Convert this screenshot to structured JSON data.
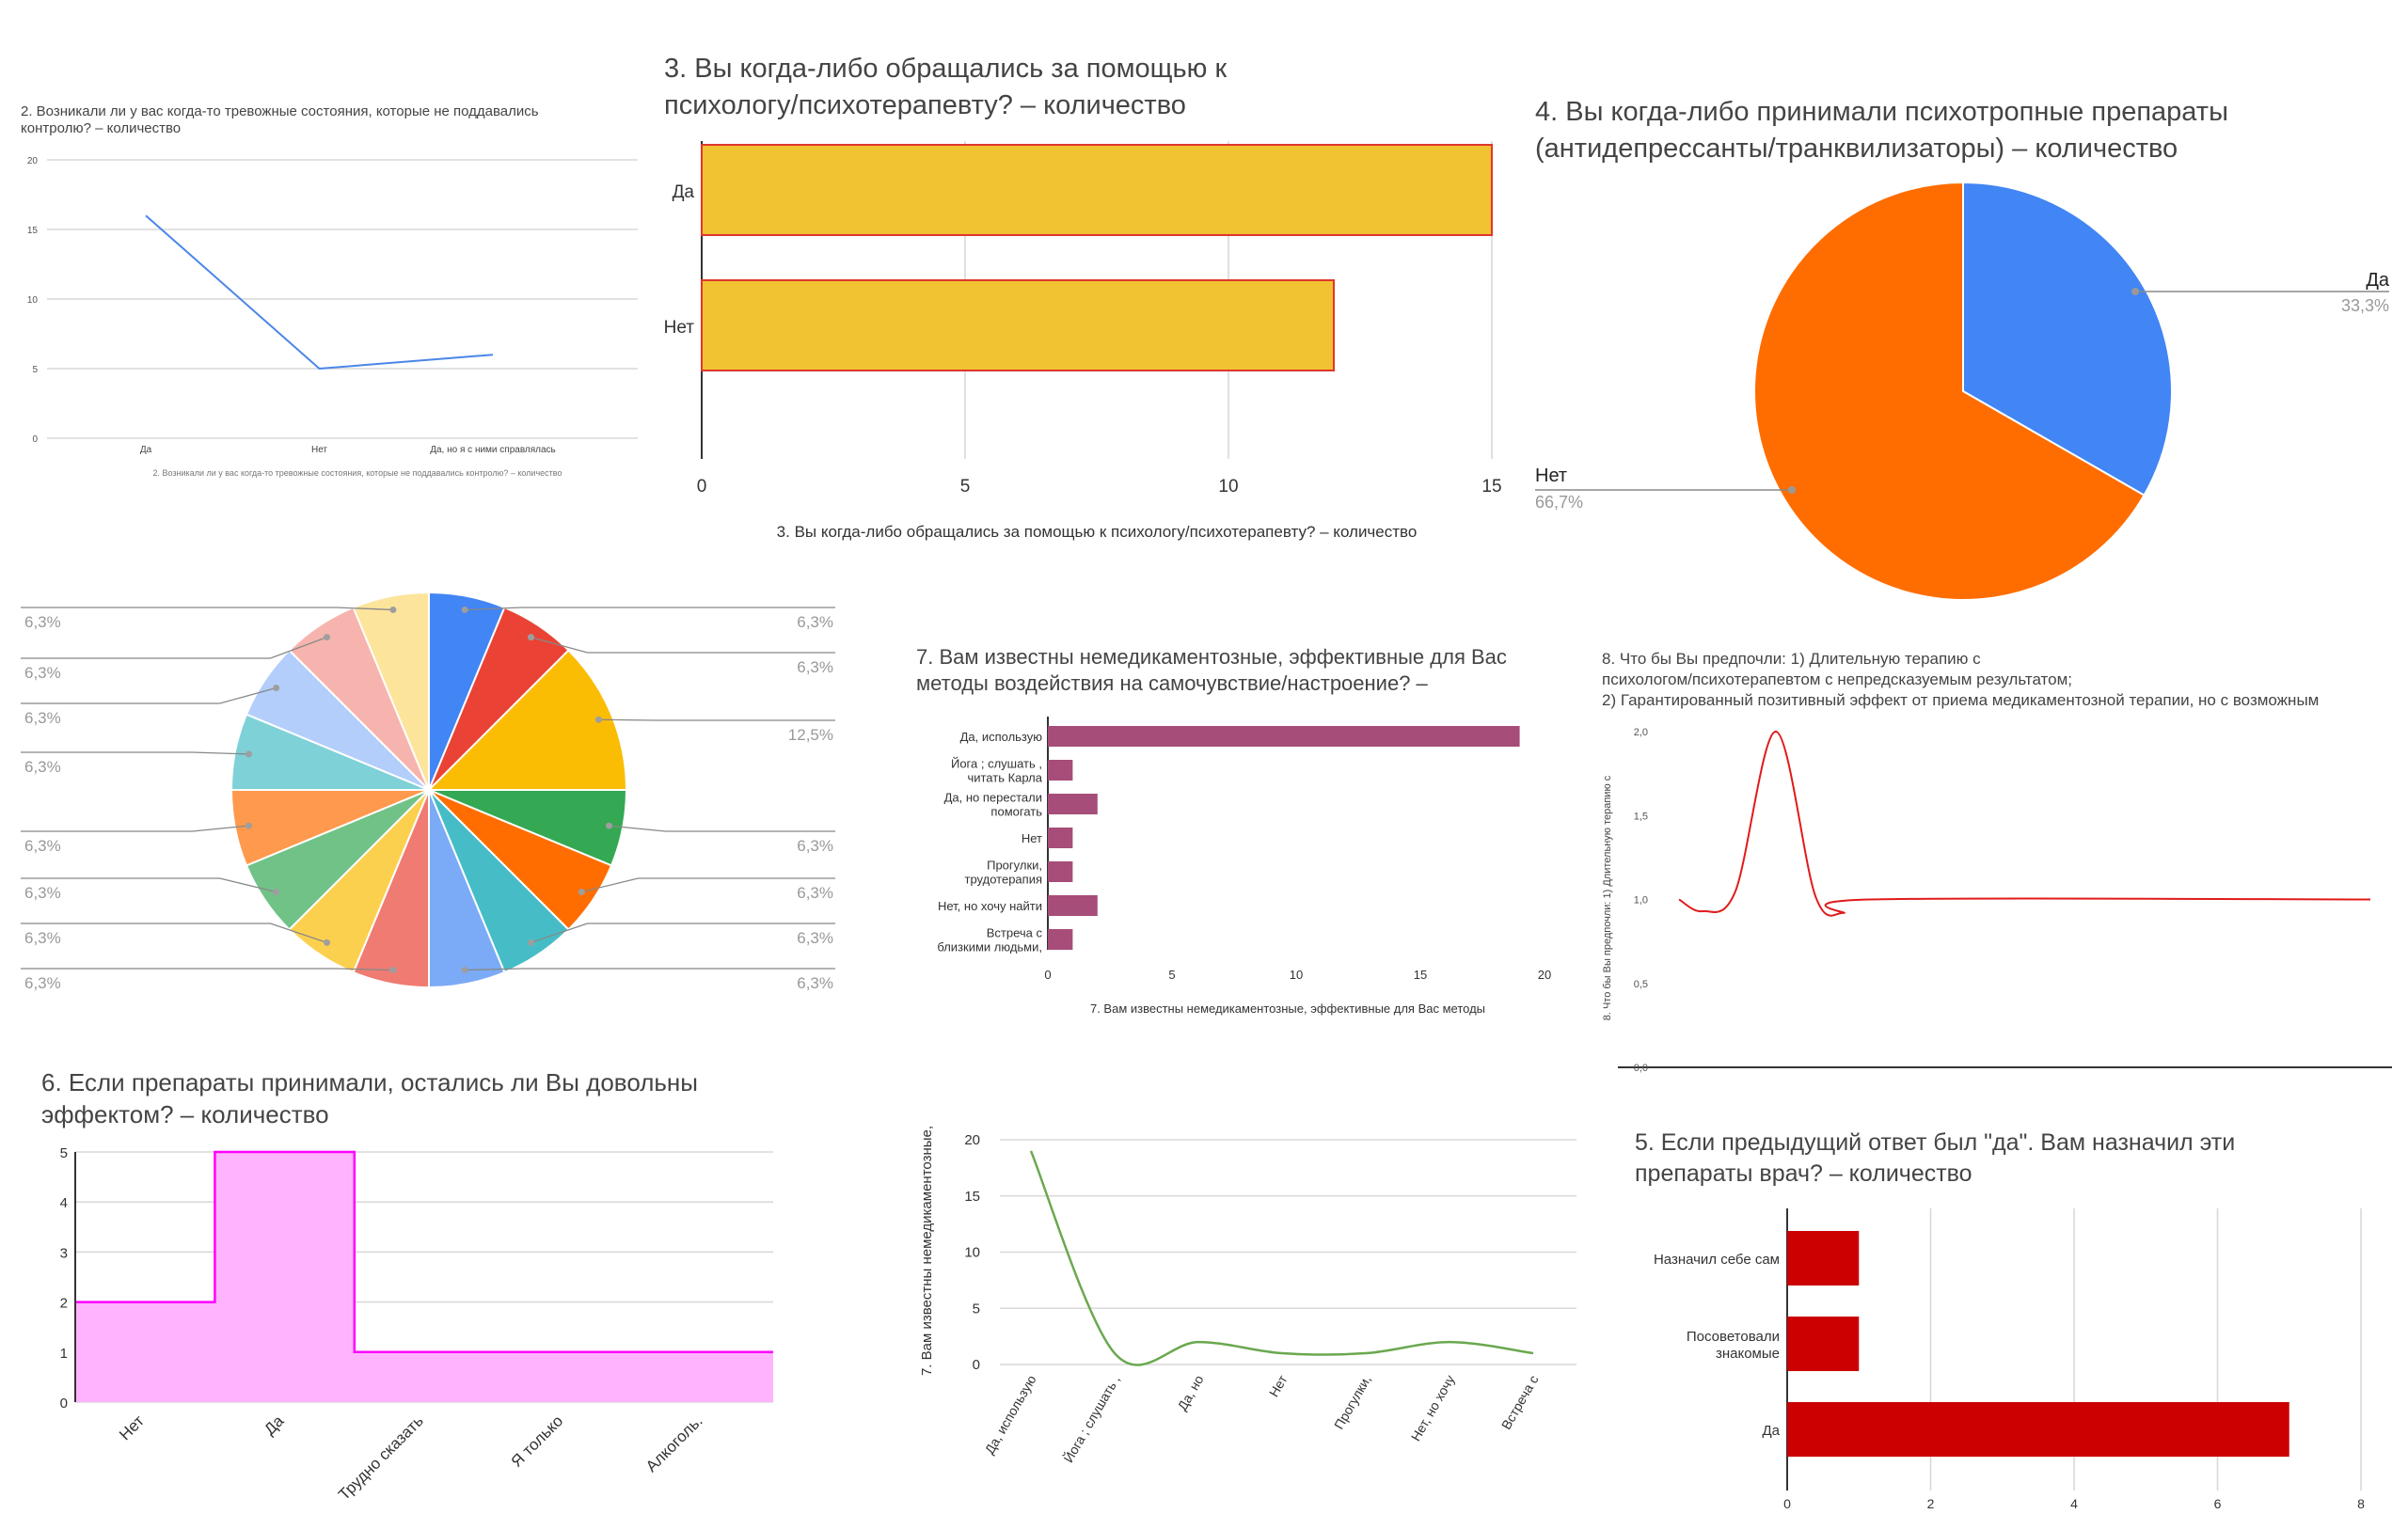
{
  "chart_data": [
    {
      "id": "c2",
      "type": "line",
      "title_lines": [
        "2. Возникали ли у вас когда-то тревожные состояния, которые не поддавались",
        "контролю? – количество"
      ],
      "xlabel": "2. Возникали ли у вас когда-то тревожные состояния, которые не поддавались контролю? – количество",
      "categories": [
        "Да",
        "Нет",
        "Да, но я с ними справлялась"
      ],
      "values": [
        16,
        5,
        6
      ],
      "ylim": [
        0,
        20
      ],
      "yticks": [
        "0",
        "5",
        "10",
        "15",
        "20"
      ],
      "color": "#4a86e8"
    },
    {
      "id": "c3",
      "type": "bar",
      "orientation": "horizontal",
      "title_lines": [
        "3. Вы когда-либо обращались за помощью к",
        "психологу/психотерапевту? – количество"
      ],
      "xlabel": "3. Вы когда-либо обращались за помощью к психологу/психотерапевту? – количество",
      "categories": [
        "Да",
        "Нет"
      ],
      "values": [
        15,
        12
      ],
      "xlim": [
        0,
        15
      ],
      "xticks": [
        "0",
        "5",
        "10",
        "15"
      ],
      "color": "#f1c232",
      "edge_color": "#e0362c"
    },
    {
      "id": "c4",
      "type": "pie",
      "title_lines": [
        "4. Вы когда-либо принимали психотропные препараты",
        "(антидепрессанты/транквилизаторы) – количество"
      ],
      "slices": [
        {
          "label": "Да",
          "value": 33.3,
          "pct": "33,3%",
          "color": "#4285f4"
        },
        {
          "label": "Нет",
          "value": 66.7,
          "pct": "66,7%",
          "color": "#ff6d01"
        }
      ]
    },
    {
      "id": "c_pie16",
      "type": "pie",
      "slices": [
        {
          "value": 6.25,
          "pct": "6,3%",
          "color": "#4285f4"
        },
        {
          "value": 6.25,
          "pct": "6,3%",
          "color": "#ea4335"
        },
        {
          "value": 12.5,
          "pct": "12,5%",
          "color": "#fbbc04"
        },
        {
          "value": 6.25,
          "pct": "6,3%",
          "color": "#34a853"
        },
        {
          "value": 6.25,
          "pct": "6,3%",
          "color": "#ff6d01"
        },
        {
          "value": 6.25,
          "pct": "6,3%",
          "color": "#46bdc6"
        },
        {
          "value": 6.25,
          "pct": "6,3%",
          "color": "#7baaf7"
        },
        {
          "value": 6.25,
          "pct": "6,3%",
          "color": "#f07b72"
        },
        {
          "value": 6.25,
          "pct": "6,3%",
          "color": "#fcd04f"
        },
        {
          "value": 6.25,
          "pct": "6,3%",
          "color": "#71c287"
        },
        {
          "value": 6.25,
          "pct": "6,3%",
          "color": "#ff994d"
        },
        {
          "value": 6.25,
          "pct": "6,3%",
          "color": "#7ed1d7"
        },
        {
          "value": 6.25,
          "pct": "6,3%",
          "color": "#b3cefb"
        },
        {
          "value": 6.25,
          "pct": "6,3%",
          "color": "#f7b4ae"
        },
        {
          "value": 6.25,
          "pct": "6,3%",
          "color": "#fde49b"
        }
      ]
    },
    {
      "id": "c7bar",
      "type": "bar",
      "orientation": "horizontal",
      "title_lines": [
        "7. Вам известны немедикаментозные, эффективные для Вас",
        "методы воздействия на самочувствие/настроение? –"
      ],
      "xlabel": "7. Вам известны немедикаментозные, эффективные для Вас методы",
      "categories": [
        [
          "Да, использую"
        ],
        [
          "Йога ; слушать ,",
          "читать Карла"
        ],
        [
          "Да, но перестали",
          "помогать"
        ],
        [
          "Нет"
        ],
        [
          "Прогулки,",
          "трудотерапия"
        ],
        [
          "Нет, но хочу найти"
        ],
        [
          "Встреча с",
          "близкими людьми,"
        ]
      ],
      "values": [
        19,
        1,
        2,
        1,
        1,
        2,
        1
      ],
      "xlim": [
        0,
        20
      ],
      "xticks": [
        "0",
        "5",
        "10",
        "15",
        "20"
      ],
      "color": "#a64d79"
    },
    {
      "id": "c8",
      "type": "line",
      "title_lines": [
        "8. Что бы Вы предпочли:                                                1) Длительную терапию с",
        "психологом/психотерапевтом с непредсказуемым результатом;",
        "2) Гарантированный позитивный эффект от приема медикаментозной терапии, но с возможным"
      ],
      "ylabel": "8. Что бы Вы предпочли:                    1) Длительную терапию с",
      "values_note": "one point of 2, the rest 1",
      "values": [
        1,
        2,
        1,
        1,
        1,
        1,
        1,
        1,
        1,
        1,
        1,
        1,
        1,
        1,
        1,
        1
      ],
      "ylim": [
        0,
        2
      ],
      "yticks": [
        "0,0",
        "0,5",
        "1,0",
        "1,5",
        "2,0"
      ],
      "color": "#e01b1b"
    },
    {
      "id": "c6",
      "type": "area",
      "title_lines": [
        "6. Если препараты принимали, остались ли Вы довольны",
        "эффектом? – количество"
      ],
      "categories": [
        "Нет",
        "Да",
        "Трудно сказать",
        "Я только",
        "Алкоголь."
      ],
      "values": [
        2,
        5,
        1,
        1,
        1
      ],
      "ylim": [
        0,
        5
      ],
      "yticks": [
        "0",
        "1",
        "2",
        "3",
        "4",
        "5"
      ],
      "color": "#ff00ff",
      "fill": "#ffb3ff"
    },
    {
      "id": "c7line",
      "type": "line",
      "ylabel": "7. Вам известны немедикаментозные,",
      "categories": [
        "Да, использую",
        "Йога ; слушать ,",
        "Да, но",
        "Нет",
        "Прогулки,",
        "Нет, но хочу",
        "Встреча с"
      ],
      "values": [
        19,
        1,
        2,
        1,
        1,
        2,
        1
      ],
      "ylim": [
        0,
        20
      ],
      "yticks": [
        "0",
        "5",
        "10",
        "15",
        "20"
      ],
      "color": "#6aa84f"
    },
    {
      "id": "c5",
      "type": "bar",
      "orientation": "horizontal",
      "title_lines": [
        "5. Если предыдущий ответ был \"да\". Вам назначил эти",
        "препараты врач? – количество"
      ],
      "categories": [
        [
          "Назначил себе сам"
        ],
        [
          "Посоветовали",
          "знакомые"
        ],
        [
          "Да"
        ]
      ],
      "values": [
        1,
        1,
        7
      ],
      "xlim": [
        0,
        8
      ],
      "xticks": [
        "0",
        "2",
        "4",
        "6",
        "8"
      ],
      "color": "#cc0000"
    }
  ]
}
